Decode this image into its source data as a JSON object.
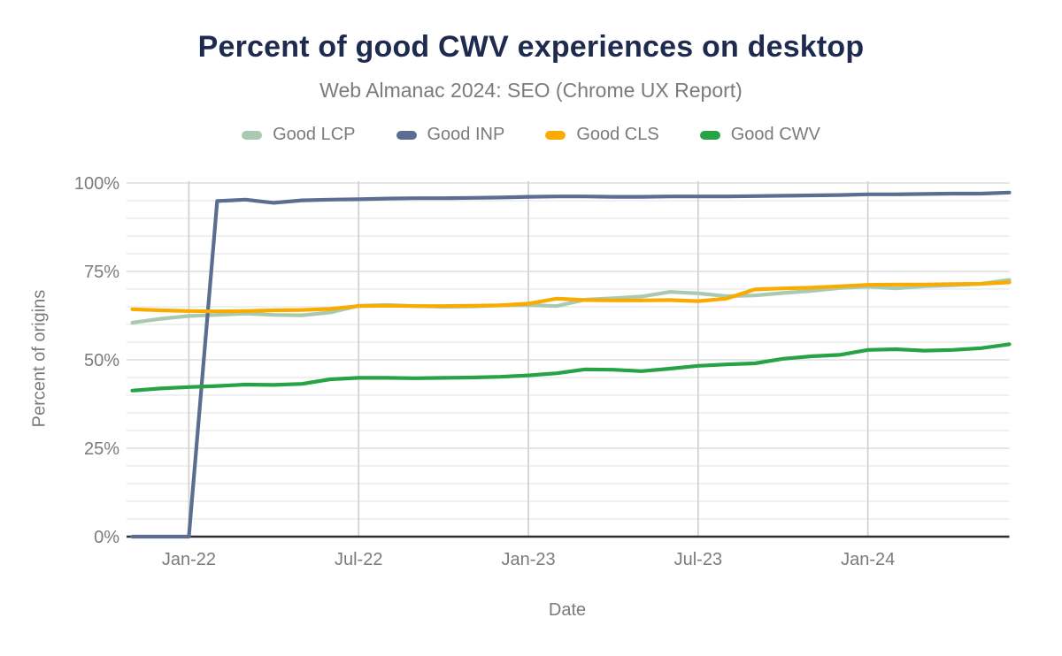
{
  "title": "Percent of good CWV experiences on desktop",
  "subtitle": "Web Almanac 2024: SEO (Chrome UX Report)",
  "colors": {
    "title_text": "#1e2a4e",
    "muted_text": "#7b7b7b",
    "axis_line": "#2f2f2f",
    "grid_horizontal": "#e7e7e7",
    "grid_horizontal_major": "#dedede",
    "grid_vertical": "#d0d0d0",
    "background": "#ffffff"
  },
  "chart_data": {
    "type": "line",
    "title": "Percent of good CWV experiences on desktop",
    "subtitle": "Web Almanac 2024: SEO (Chrome UX Report)",
    "xlabel": "Date",
    "ylabel": "Percent of origins",
    "ylim": [
      0,
      100
    ],
    "grid": true,
    "legend_position": "top",
    "y_ticks": [
      0,
      25,
      50,
      75,
      100
    ],
    "y_tick_labels": [
      "0%",
      "25%",
      "50%",
      "75%",
      "100%"
    ],
    "minor_grid_step_percent": 5,
    "x": [
      "Nov-21",
      "Dec-21",
      "Jan-22",
      "Feb-22",
      "Mar-22",
      "Apr-22",
      "May-22",
      "Jun-22",
      "Jul-22",
      "Aug-22",
      "Sep-22",
      "Oct-22",
      "Nov-22",
      "Dec-22",
      "Jan-23",
      "Feb-23",
      "Mar-23",
      "Apr-23",
      "May-23",
      "Jun-23",
      "Jul-23",
      "Aug-23",
      "Sep-23",
      "Oct-23",
      "Nov-23",
      "Dec-23",
      "Jan-24",
      "Feb-24",
      "Mar-24",
      "Apr-24",
      "May-24",
      "Jun-24"
    ],
    "x_tick_indices": [
      2,
      8,
      14,
      20,
      26
    ],
    "x_tick_labels": [
      "Jan-22",
      "Jul-22",
      "Jan-23",
      "Jul-23",
      "Jan-24"
    ],
    "series": [
      {
        "name": "Good LCP",
        "color": "#a9c9b1",
        "values": [
          60.5,
          61.6,
          62.4,
          62.7,
          63.1,
          62.7,
          62.6,
          63.4,
          65.3,
          65.5,
          65.2,
          65.0,
          65.1,
          65.4,
          65.5,
          65.2,
          67.0,
          67.4,
          67.9,
          69.2,
          68.8,
          68.0,
          68.2,
          68.9,
          69.5,
          70.3,
          70.7,
          70.2,
          70.8,
          71.1,
          71.5,
          72.6
        ]
      },
      {
        "name": "Good INP",
        "color": "#5b6e91",
        "values": [
          0,
          0,
          0,
          94.9,
          95.3,
          94.4,
          95.1,
          95.3,
          95.4,
          95.6,
          95.7,
          95.7,
          95.8,
          95.9,
          96.1,
          96.2,
          96.2,
          96.1,
          96.1,
          96.2,
          96.2,
          96.2,
          96.3,
          96.4,
          96.5,
          96.6,
          96.8,
          96.8,
          96.9,
          97.0,
          97.0,
          97.3
        ]
      },
      {
        "name": "Good CLS",
        "color": "#f9ab00",
        "values": [
          64.3,
          64.0,
          63.8,
          63.7,
          63.8,
          64.0,
          64.1,
          64.4,
          65.2,
          65.3,
          65.2,
          65.2,
          65.3,
          65.4,
          65.9,
          67.3,
          66.9,
          66.8,
          66.8,
          66.9,
          66.6,
          67.3,
          69.9,
          70.2,
          70.4,
          70.8,
          71.2,
          71.3,
          71.3,
          71.4,
          71.5,
          71.9
        ]
      },
      {
        "name": "Good CWV",
        "color": "#27a346",
        "values": [
          41.3,
          41.9,
          42.3,
          42.6,
          43.0,
          42.9,
          43.2,
          44.5,
          44.9,
          44.9,
          44.8,
          44.9,
          45.0,
          45.2,
          45.6,
          46.2,
          47.3,
          47.2,
          46.8,
          47.5,
          48.3,
          48.7,
          49.0,
          50.3,
          51.0,
          51.4,
          52.8,
          53.0,
          52.6,
          52.8,
          53.3,
          54.4
        ]
      }
    ]
  }
}
